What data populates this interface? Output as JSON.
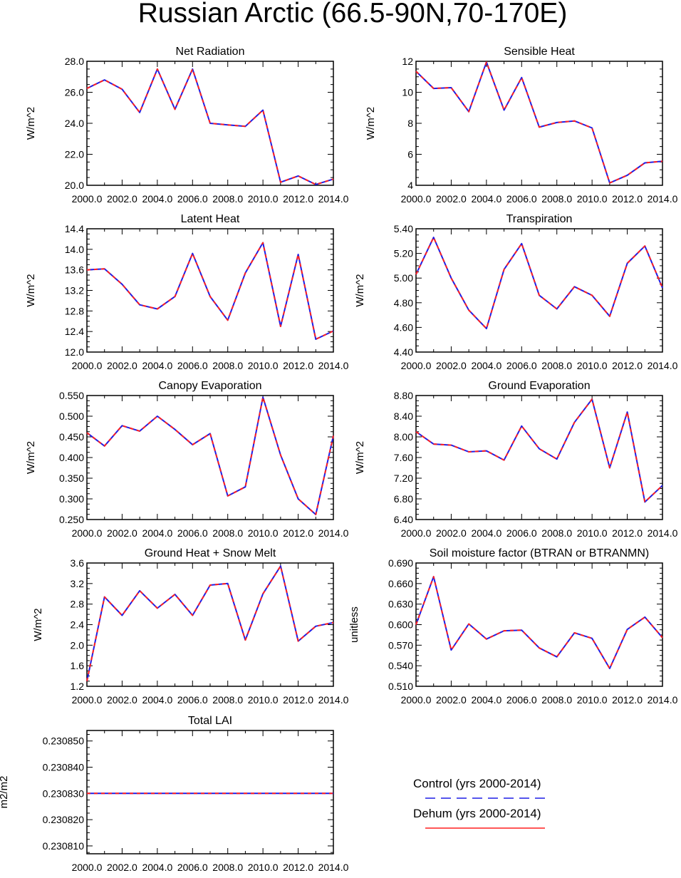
{
  "title": "Russian Arctic (66.5-90N,70-170E)",
  "colors": {
    "control": "#1f1fe6",
    "dehum": "#ff2020",
    "axis": "#000000"
  },
  "legend": {
    "control_label": "Control (yrs 2000-2014)",
    "dehum_label": "Dehum (yrs 2000-2014)"
  },
  "chart_data": [
    {
      "type": "line",
      "title": "Net Radiation",
      "ylabel": "W/m^2",
      "x": [
        2000,
        2001,
        2002,
        2003,
        2004,
        2005,
        2006,
        2007,
        2008,
        2009,
        2010,
        2011,
        2012,
        2013,
        2014
      ],
      "xticks": [
        "2000.0",
        "2002.0",
        "2004.0",
        "2006.0",
        "2008.0",
        "2010.0",
        "2012.0",
        "2014.0"
      ],
      "ylim": [
        20.0,
        28.0
      ],
      "yticks": [
        "20.0",
        "22.0",
        "24.0",
        "26.0",
        "28.0"
      ],
      "series": [
        {
          "name": "Control (yrs 2000-2014)",
          "values": [
            26.25,
            26.8,
            26.2,
            24.7,
            27.5,
            24.9,
            27.5,
            24.0,
            23.9,
            23.8,
            24.85,
            20.2,
            20.6,
            20.05,
            20.4
          ]
        },
        {
          "name": "Dehum (yrs 2000-2014)",
          "values": [
            26.25,
            26.8,
            26.2,
            24.7,
            27.5,
            24.9,
            27.5,
            24.0,
            23.9,
            23.8,
            24.85,
            20.2,
            20.6,
            20.05,
            20.4
          ]
        }
      ]
    },
    {
      "type": "line",
      "title": "Sensible Heat",
      "ylabel": "W/m^2",
      "x": [
        2000,
        2001,
        2002,
        2003,
        2004,
        2005,
        2006,
        2007,
        2008,
        2009,
        2010,
        2011,
        2012,
        2013,
        2014
      ],
      "xticks": [
        "2000.0",
        "2002.0",
        "2004.0",
        "2006.0",
        "2008.0",
        "2010.0",
        "2012.0",
        "2014.0"
      ],
      "ylim": [
        4,
        12
      ],
      "yticks": [
        "4",
        "6",
        "8",
        "10",
        "12"
      ],
      "series": [
        {
          "name": "Control (yrs 2000-2014)",
          "values": [
            11.35,
            10.25,
            10.3,
            8.75,
            11.95,
            8.85,
            10.95,
            7.75,
            8.05,
            8.15,
            7.7,
            4.15,
            4.65,
            5.45,
            5.55
          ]
        },
        {
          "name": "Dehum (yrs 2000-2014)",
          "values": [
            11.35,
            10.25,
            10.3,
            8.75,
            11.95,
            8.85,
            10.95,
            7.75,
            8.05,
            8.15,
            7.7,
            4.15,
            4.65,
            5.45,
            5.55
          ]
        }
      ]
    },
    {
      "type": "line",
      "title": "Latent Heat",
      "ylabel": "W/m^2",
      "x": [
        2000,
        2001,
        2002,
        2003,
        2004,
        2005,
        2006,
        2007,
        2008,
        2009,
        2010,
        2011,
        2012,
        2013,
        2014
      ],
      "xticks": [
        "2000.0",
        "2002.0",
        "2004.0",
        "2006.0",
        "2008.0",
        "2010.0",
        "2012.0",
        "2014.0"
      ],
      "ylim": [
        12.0,
        14.4
      ],
      "yticks": [
        "12.0",
        "12.4",
        "12.8",
        "13.2",
        "13.6",
        "14.0",
        "14.4"
      ],
      "series": [
        {
          "name": "Control (yrs 2000-2014)",
          "values": [
            13.6,
            13.62,
            13.32,
            12.92,
            12.84,
            13.08,
            13.92,
            13.08,
            12.62,
            13.54,
            14.13,
            12.5,
            13.9,
            12.25,
            12.41
          ]
        },
        {
          "name": "Dehum (yrs 2000-2014)",
          "values": [
            13.6,
            13.62,
            13.32,
            12.92,
            12.84,
            13.08,
            13.92,
            13.08,
            12.62,
            13.54,
            14.13,
            12.5,
            13.9,
            12.25,
            12.41
          ]
        }
      ]
    },
    {
      "type": "line",
      "title": "Transpiration",
      "ylabel": "W/m^2",
      "x": [
        2000,
        2001,
        2002,
        2003,
        2004,
        2005,
        2006,
        2007,
        2008,
        2009,
        2010,
        2011,
        2012,
        2013,
        2014
      ],
      "xticks": [
        "2000.0",
        "2002.0",
        "2004.0",
        "2006.0",
        "2008.0",
        "2010.0",
        "2012.0",
        "2014.0"
      ],
      "ylim": [
        4.4,
        5.4
      ],
      "yticks": [
        "4.40",
        "4.60",
        "4.80",
        "5.00",
        "5.20",
        "5.40"
      ],
      "series": [
        {
          "name": "Control (yrs 2000-2014)",
          "values": [
            5.03,
            5.33,
            5.0,
            4.74,
            4.59,
            5.07,
            5.28,
            4.86,
            4.75,
            4.93,
            4.86,
            4.69,
            5.12,
            5.26,
            4.92
          ]
        },
        {
          "name": "Dehum (yrs 2000-2014)",
          "values": [
            5.03,
            5.33,
            5.0,
            4.74,
            4.59,
            5.07,
            5.28,
            4.86,
            4.75,
            4.93,
            4.86,
            4.69,
            5.12,
            5.26,
            4.92
          ]
        }
      ]
    },
    {
      "type": "line",
      "title": "Canopy Evaporation",
      "ylabel": "W/m^2",
      "x": [
        2000,
        2001,
        2002,
        2003,
        2004,
        2005,
        2006,
        2007,
        2008,
        2009,
        2010,
        2011,
        2012,
        2013,
        2014
      ],
      "xticks": [
        "2000.0",
        "2002.0",
        "2004.0",
        "2006.0",
        "2008.0",
        "2010.0",
        "2012.0",
        "2014.0"
      ],
      "ylim": [
        0.25,
        0.55
      ],
      "yticks": [
        "0.250",
        "0.300",
        "0.350",
        "0.400",
        "0.450",
        "0.500",
        "0.550"
      ],
      "series": [
        {
          "name": "Control (yrs 2000-2014)",
          "values": [
            0.46,
            0.428,
            0.477,
            0.464,
            0.5,
            0.468,
            0.431,
            0.458,
            0.307,
            0.329,
            0.546,
            0.406,
            0.3,
            0.262,
            0.453
          ]
        },
        {
          "name": "Dehum (yrs 2000-2014)",
          "values": [
            0.46,
            0.428,
            0.477,
            0.464,
            0.5,
            0.468,
            0.431,
            0.458,
            0.307,
            0.329,
            0.546,
            0.406,
            0.3,
            0.262,
            0.453
          ]
        }
      ]
    },
    {
      "type": "line",
      "title": "Ground Evaporation",
      "ylabel": "W/m^2",
      "x": [
        2000,
        2001,
        2002,
        2003,
        2004,
        2005,
        2006,
        2007,
        2008,
        2009,
        2010,
        2011,
        2012,
        2013,
        2014
      ],
      "xticks": [
        "2000.0",
        "2002.0",
        "2004.0",
        "2006.0",
        "2008.0",
        "2010.0",
        "2012.0",
        "2014.0"
      ],
      "ylim": [
        6.4,
        8.8
      ],
      "yticks": [
        "6.40",
        "6.80",
        "7.20",
        "7.60",
        "8.00",
        "8.40",
        "8.80"
      ],
      "series": [
        {
          "name": "Control (yrs 2000-2014)",
          "values": [
            8.1,
            7.86,
            7.84,
            7.71,
            7.73,
            7.55,
            8.21,
            7.77,
            7.57,
            8.28,
            8.73,
            7.4,
            8.48,
            6.74,
            7.06
          ]
        },
        {
          "name": "Dehum (yrs 2000-2014)",
          "values": [
            8.1,
            7.86,
            7.84,
            7.71,
            7.73,
            7.55,
            8.21,
            7.77,
            7.57,
            8.28,
            8.73,
            7.4,
            8.48,
            6.74,
            7.06
          ]
        }
      ]
    },
    {
      "type": "line",
      "title": "Ground Heat + Snow Melt",
      "ylabel": "W/m^2",
      "x": [
        2000,
        2001,
        2002,
        2003,
        2004,
        2005,
        2006,
        2007,
        2008,
        2009,
        2010,
        2011,
        2012,
        2013,
        2014
      ],
      "xticks": [
        "2000.0",
        "2002.0",
        "2004.0",
        "2006.0",
        "2008.0",
        "2010.0",
        "2012.0",
        "2014.0"
      ],
      "ylim": [
        1.2,
        3.6
      ],
      "yticks": [
        "1.2",
        "1.6",
        "2.0",
        "2.4",
        "2.8",
        "3.2",
        "3.6"
      ],
      "series": [
        {
          "name": "Control (yrs 2000-2014)",
          "values": [
            1.3,
            2.94,
            2.58,
            3.06,
            2.72,
            2.99,
            2.58,
            3.17,
            3.2,
            2.1,
            3.0,
            3.54,
            2.08,
            2.37,
            2.44
          ]
        },
        {
          "name": "Dehum (yrs 2000-2014)",
          "values": [
            1.3,
            2.94,
            2.58,
            3.06,
            2.72,
            2.99,
            2.58,
            3.17,
            3.2,
            2.1,
            3.0,
            3.54,
            2.08,
            2.37,
            2.44
          ]
        }
      ]
    },
    {
      "type": "line",
      "title": "Soil moisture factor (BTRAN or BTRANMN)",
      "ylabel": "unitless",
      "x": [
        2000,
        2001,
        2002,
        2003,
        2004,
        2005,
        2006,
        2007,
        2008,
        2009,
        2010,
        2011,
        2012,
        2013,
        2014
      ],
      "xticks": [
        "2000.0",
        "2002.0",
        "2004.0",
        "2006.0",
        "2008.0",
        "2010.0",
        "2012.0",
        "2014.0"
      ],
      "ylim": [
        0.51,
        0.69
      ],
      "yticks": [
        "0.510",
        "0.540",
        "0.570",
        "0.600",
        "0.630",
        "0.660",
        "0.690"
      ],
      "series": [
        {
          "name": "Control (yrs 2000-2014)",
          "values": [
            0.6,
            0.67,
            0.563,
            0.601,
            0.579,
            0.591,
            0.592,
            0.566,
            0.553,
            0.588,
            0.58,
            0.536,
            0.593,
            0.611,
            0.581
          ]
        },
        {
          "name": "Dehum (yrs 2000-2014)",
          "values": [
            0.6,
            0.67,
            0.563,
            0.601,
            0.579,
            0.591,
            0.592,
            0.566,
            0.553,
            0.588,
            0.58,
            0.536,
            0.593,
            0.611,
            0.581
          ]
        }
      ]
    },
    {
      "type": "line",
      "title": "Total LAI",
      "ylabel": "m2/m2",
      "x": [
        2000,
        2001,
        2002,
        2003,
        2004,
        2005,
        2006,
        2007,
        2008,
        2009,
        2010,
        2011,
        2012,
        2013,
        2014
      ],
      "xticks": [
        "2000.0",
        "2002.0",
        "2004.0",
        "2006.0",
        "2008.0",
        "2010.0",
        "2012.0",
        "2014.0"
      ],
      "ylim": [
        0.230807,
        0.230854
      ],
      "yticks": [
        "0.230810",
        "0.230820",
        "0.230830",
        "0.230840",
        "0.230850"
      ],
      "series": [
        {
          "name": "Control (yrs 2000-2014)",
          "values": [
            0.23083,
            0.23083,
            0.23083,
            0.23083,
            0.23083,
            0.23083,
            0.23083,
            0.23083,
            0.23083,
            0.23083,
            0.23083,
            0.23083,
            0.23083,
            0.23083,
            0.23083
          ]
        },
        {
          "name": "Dehum (yrs 2000-2014)",
          "values": [
            0.23083,
            0.23083,
            0.23083,
            0.23083,
            0.23083,
            0.23083,
            0.23083,
            0.23083,
            0.23083,
            0.23083,
            0.23083,
            0.23083,
            0.23083,
            0.23083,
            0.23083
          ]
        }
      ]
    }
  ]
}
